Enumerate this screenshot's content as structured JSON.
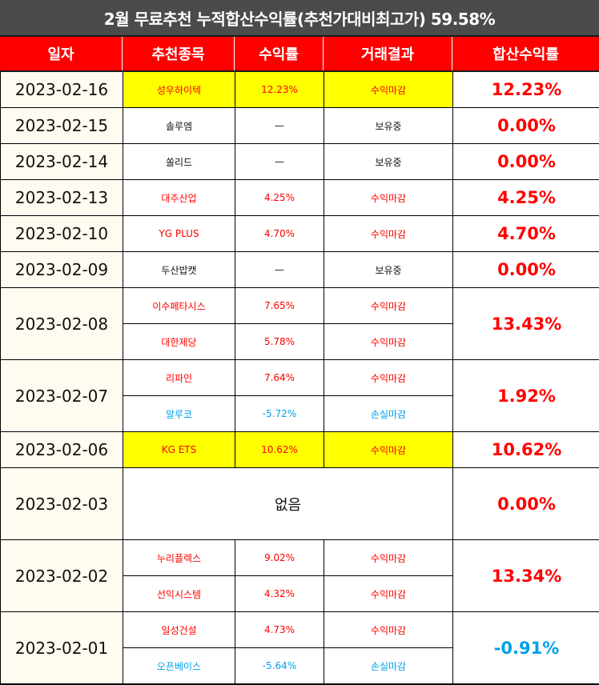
{
  "title": "2월 무료추천 누적합산수익률(추천가대비최고가) 59.58%",
  "headers": [
    "일자",
    "추천종목",
    "수익률",
    "거래결과",
    "합산수익률"
  ],
  "colors": {
    "title_bg": "#4b4b4b",
    "header_bg": "#ff0000",
    "highlight": "#ffff00",
    "profit": "#ff0000",
    "loss": "#00a0e9",
    "date_bg": "#fffbf0"
  },
  "rows": [
    {
      "date": "2023-02-16",
      "total": "12.23%",
      "items": [
        {
          "stock": "성우하이텍",
          "rate": "12.23%",
          "result": "수익마감"
        }
      ]
    },
    {
      "date": "2023-02-15",
      "total": "0.00%",
      "items": [
        {
          "stock": "솔루엠",
          "rate": "—",
          "result": "보유중"
        }
      ]
    },
    {
      "date": "2023-02-14",
      "total": "0.00%",
      "items": [
        {
          "stock": "쏠리드",
          "rate": "—",
          "result": "보유중"
        }
      ]
    },
    {
      "date": "2023-02-13",
      "total": "4.25%",
      "items": [
        {
          "stock": "대주산업",
          "rate": "4.25%",
          "result": "수익마감"
        }
      ]
    },
    {
      "date": "2023-02-10",
      "total": "4.70%",
      "items": [
        {
          "stock": "YG PLUS",
          "rate": "4.70%",
          "result": "수익마감"
        }
      ]
    },
    {
      "date": "2023-02-09",
      "total": "0.00%",
      "items": [
        {
          "stock": "두산밥캣",
          "rate": "—",
          "result": "보유중"
        }
      ]
    },
    {
      "date": "2023-02-08",
      "total": "13.43%",
      "items": [
        {
          "stock": "이수페타시스",
          "rate": "7.65%",
          "result": "수익마감"
        },
        {
          "stock": "대한제당",
          "rate": "5.78%",
          "result": "수익마감"
        }
      ]
    },
    {
      "date": "2023-02-07",
      "total": "1.92%",
      "items": [
        {
          "stock": "리파인",
          "rate": "7.64%",
          "result": "수익마감"
        },
        {
          "stock": "알루코",
          "rate": "-5.72%",
          "result": "손실마감"
        }
      ]
    },
    {
      "date": "2023-02-06",
      "total": "10.62%",
      "items": [
        {
          "stock": "KG ETS",
          "rate": "10.62%",
          "result": "수익마감"
        }
      ]
    },
    {
      "date": "2023-02-03",
      "total": "0.00%",
      "none_text": "없음"
    },
    {
      "date": "2023-02-02",
      "total": "13.34%",
      "items": [
        {
          "stock": "누리플렉스",
          "rate": "9.02%",
          "result": "수익마감"
        },
        {
          "stock": "선익시스템",
          "rate": "4.32%",
          "result": "수익마감"
        }
      ]
    },
    {
      "date": "2023-02-01",
      "total": "-0.91%",
      "items": [
        {
          "stock": "일성건설",
          "rate": "4.73%",
          "result": "수익마감"
        },
        {
          "stock": "오픈베이스",
          "rate": "-5.64%",
          "result": "손실마감"
        }
      ]
    }
  ]
}
